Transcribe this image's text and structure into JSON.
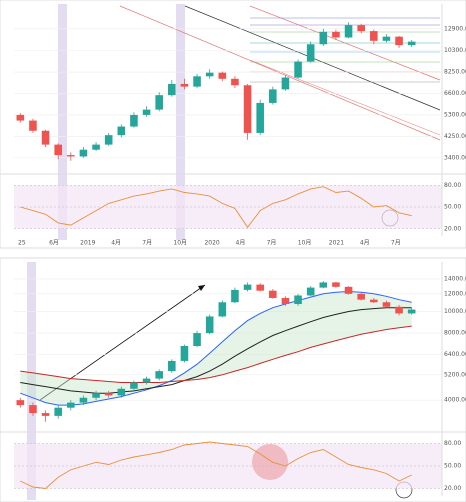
{
  "chart_data": [
    {
      "type": "candlestick",
      "log_scale": true,
      "up_color": "#26a69a",
      "down_color": "#ef5350",
      "x_labels": [
        "25",
        "6月",
        "2019",
        "4月",
        "7月",
        "10月",
        "2020",
        "4月",
        "7月",
        "10月",
        "2021",
        "4月",
        "7月"
      ],
      "open": [
        5300,
        5000,
        4500,
        3900,
        3500,
        3450,
        3700,
        3900,
        4300,
        4700,
        5300,
        5600,
        6500,
        7300,
        7100,
        7900,
        8200,
        7700,
        7200,
        4400,
        6000,
        6900,
        7800,
        9200,
        11000,
        12500,
        11800,
        13400,
        12600,
        11400,
        11900,
        10900
      ],
      "high": [
        5400,
        5100,
        4550,
        3950,
        3600,
        3800,
        4000,
        4400,
        4800,
        5450,
        5800,
        6700,
        7600,
        7700,
        8100,
        8500,
        8300,
        7900,
        7300,
        6200,
        7100,
        8000,
        9400,
        11300,
        12900,
        12800,
        13800,
        13600,
        12800,
        12200,
        12000,
        11500
      ],
      "low": [
        4900,
        4400,
        3800,
        3350,
        3300,
        3400,
        3650,
        3850,
        4200,
        4650,
        5200,
        5500,
        6400,
        6900,
        7000,
        7700,
        7500,
        7000,
        4100,
        4300,
        5900,
        6800,
        7700,
        9100,
        10800,
        11500,
        11700,
        12300,
        11000,
        11200,
        10600,
        10700
      ],
      "close": [
        5000,
        4500,
        3900,
        3500,
        3450,
        3700,
        3900,
        4300,
        4700,
        5300,
        5600,
        6500,
        7300,
        7100,
        7900,
        8200,
        7700,
        7200,
        4400,
        6000,
        6900,
        7800,
        9200,
        11000,
        12500,
        11800,
        13400,
        12600,
        11400,
        11900,
        10900,
        11300
      ],
      "ylim": [
        3000,
        16000
      ],
      "yticks": [
        {
          "value": 3400,
          "label": "3400.00"
        },
        {
          "value": 4250,
          "label": "4250.00"
        },
        {
          "value": 5300,
          "label": "5300.00"
        },
        {
          "value": 6600,
          "label": "6600.00"
        },
        {
          "value": 8250,
          "label": "8250.00"
        },
        {
          "value": 10300,
          "label": "10300.00"
        },
        {
          "value": 12900,
          "label": "12900.00"
        }
      ],
      "indicator": {
        "color": "#e8913a",
        "values": [
          50,
          45,
          40,
          28,
          25,
          35,
          45,
          55,
          60,
          65,
          68,
          72,
          75,
          70,
          68,
          65,
          55,
          48,
          22,
          45,
          55,
          60,
          68,
          75,
          78,
          70,
          72,
          62,
          50,
          52,
          42,
          38
        ],
        "ylim": [
          10,
          90
        ],
        "yticks": [
          {
            "value": 80,
            "label": "80.00"
          },
          {
            "value": 50,
            "label": "50.00"
          },
          {
            "value": 20,
            "label": "20.00"
          }
        ]
      }
    },
    {
      "type": "candlestick",
      "log_scale": true,
      "up_color": "#26a69a",
      "down_color": "#ef5350",
      "open": [
        4000,
        3800,
        3500,
        3400,
        3700,
        3900,
        4100,
        4300,
        4200,
        4500,
        4800,
        5000,
        5400,
        6000,
        7000,
        8000,
        9500,
        11000,
        12500,
        13200,
        12400,
        11500,
        10800,
        11800,
        12800,
        13500,
        12900,
        12000,
        11300,
        11000,
        10500,
        9800
      ],
      "high": [
        4100,
        3900,
        3600,
        3800,
        4000,
        4200,
        4400,
        4400,
        4600,
        4900,
        5100,
        5500,
        6100,
        7100,
        8200,
        9700,
        11200,
        12800,
        13500,
        13400,
        12600,
        11700,
        12000,
        13000,
        13700,
        13600,
        13000,
        12200,
        11500,
        11200,
        10700,
        10400
      ],
      "low": [
        3700,
        3400,
        3200,
        3300,
        3600,
        3800,
        4000,
        4100,
        4100,
        4400,
        4700,
        4900,
        5300,
        5900,
        6900,
        7900,
        9400,
        10900,
        12300,
        12300,
        11400,
        10600,
        10600,
        11700,
        12700,
        12800,
        11900,
        11200,
        10900,
        10400,
        9600,
        9700
      ],
      "close": [
        3800,
        3500,
        3400,
        3700,
        3900,
        4100,
        4300,
        4200,
        4500,
        4800,
        5000,
        5400,
        6000,
        7000,
        8000,
        9500,
        11000,
        12500,
        13200,
        12400,
        11500,
        10800,
        11800,
        12800,
        13500,
        12900,
        12000,
        11300,
        11000,
        10500,
        9800,
        10200
      ],
      "lines": [
        {
          "color": "#2962ff",
          "values": [
            4300,
            4100,
            3900,
            3800,
            3800,
            3850,
            3950,
            4050,
            4150,
            4300,
            4450,
            4650,
            4900,
            5300,
            5800,
            6500,
            7300,
            8200,
            9100,
            9800,
            10400,
            10800,
            11200,
            11600,
            12000,
            12200,
            12300,
            12200,
            12000,
            11700,
            11300,
            11000
          ]
        },
        {
          "color": "#222222",
          "values": [
            4800,
            4700,
            4600,
            4500,
            4400,
            4350,
            4300,
            4300,
            4350,
            4400,
            4500,
            4600,
            4700,
            4900,
            5100,
            5400,
            5800,
            6300,
            6800,
            7300,
            7800,
            8200,
            8600,
            9000,
            9400,
            9700,
            10000,
            10200,
            10300,
            10400,
            10400,
            10400
          ]
        },
        {
          "color": "#c62828",
          "values": [
            5400,
            5300,
            5200,
            5100,
            5000,
            4950,
            4900,
            4850,
            4800,
            4800,
            4800,
            4800,
            4850,
            4900,
            4950,
            5050,
            5200,
            5400,
            5600,
            5850,
            6100,
            6350,
            6600,
            6900,
            7150,
            7400,
            7650,
            7900,
            8100,
            8300,
            8450,
            8600
          ]
        }
      ],
      "ylim": [
        3000,
        16000
      ],
      "yticks": [
        {
          "value": 4000,
          "label": "4000.00"
        },
        {
          "value": 5200,
          "label": "5200.00"
        },
        {
          "value": 6400,
          "label": "6400.00"
        },
        {
          "value": 8000,
          "label": "8000.00"
        },
        {
          "value": 10000,
          "label": "10000.00"
        },
        {
          "value": 12000,
          "label": "12000.00"
        },
        {
          "value": 14000,
          "label": "14000.00"
        }
      ],
      "indicator": {
        "color": "#e8913a",
        "values": [
          30,
          22,
          20,
          35,
          45,
          50,
          55,
          52,
          58,
          62,
          65,
          68,
          72,
          78,
          80,
          82,
          80,
          78,
          76,
          66,
          55,
          50,
          60,
          68,
          72,
          62,
          52,
          48,
          45,
          40,
          30,
          38
        ],
        "ylim": [
          10,
          90
        ],
        "yticks": [
          {
            "value": 80,
            "label": "80.00"
          },
          {
            "value": 50,
            "label": "50.00"
          },
          {
            "value": 20,
            "label": "20.00"
          }
        ]
      }
    }
  ]
}
